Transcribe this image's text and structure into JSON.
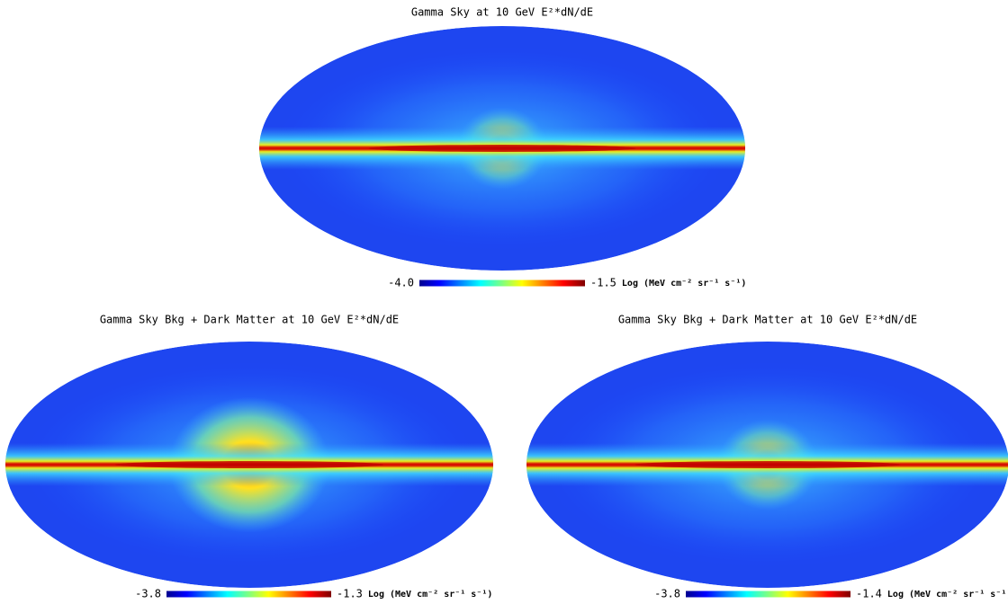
{
  "chart_data": [
    {
      "type": "skymap",
      "title": "Gamma Sky at 10 GeV  E²*dN/dE",
      "colorbar": {
        "ticks": [
          {
            "value": -4,
            "label": "-4.0"
          },
          -1.5
        ],
        "label": "Log (MeV cm⁻² sr⁻¹ s⁻¹)"
      }
    },
    {
      "type": "skymap",
      "title": "Gamma Sky Bkg + Dark Matter at 10 GeV  E²*dN/dE",
      "colorbar": {
        "ticks": [
          -3.8,
          -1.3
        ],
        "label": "Log (MeV cm⁻² sr⁻¹ s⁻¹)"
      }
    },
    {
      "type": "skymap",
      "title": "Gamma Sky Bkg + Dark Matter at 10 GeV  E²*dN/dE",
      "colorbar": {
        "ticks": [
          -3.8,
          -1.4
        ],
        "label": "Log (MeV cm⁻² sr⁻¹ s⁻¹)"
      }
    }
  ]
}
